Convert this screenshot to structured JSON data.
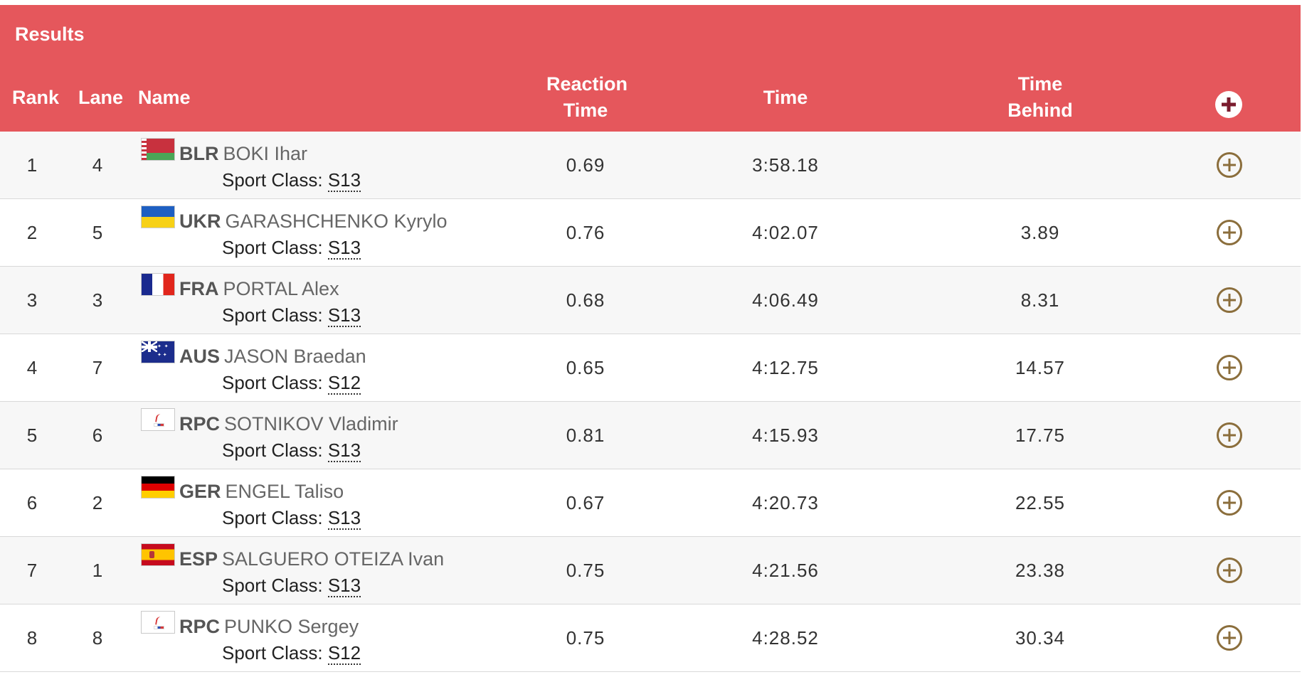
{
  "section_title": "Results",
  "columns": {
    "rank": "Rank",
    "lane": "Lane",
    "name": "Name",
    "reaction_time": "Reaction Time",
    "time": "Time",
    "time_behind": "Time Behind"
  },
  "sport_class_label": "Sport Class:",
  "colors": {
    "header_bg": "#e5575c",
    "header_text": "#ffffff",
    "expand_icon": "#8b6e3c",
    "header_expand_icon": "#7a1c2e"
  },
  "rows": [
    {
      "rank": "1",
      "lane": "4",
      "noc": "BLR",
      "flag_icon": "flag-blr-icon",
      "name": "BOKI Ihar",
      "sport_class": "S13",
      "reaction_time": "0.69",
      "time": "3:58.18",
      "time_behind": ""
    },
    {
      "rank": "2",
      "lane": "5",
      "noc": "UKR",
      "flag_icon": "flag-ukr-icon",
      "name": "GARASHCHENKO Kyrylo",
      "sport_class": "S13",
      "reaction_time": "0.76",
      "time": "4:02.07",
      "time_behind": "3.89"
    },
    {
      "rank": "3",
      "lane": "3",
      "noc": "FRA",
      "flag_icon": "flag-fra-icon",
      "name": "PORTAL Alex",
      "sport_class": "S13",
      "reaction_time": "0.68",
      "time": "4:06.49",
      "time_behind": "8.31"
    },
    {
      "rank": "4",
      "lane": "7",
      "noc": "AUS",
      "flag_icon": "flag-aus-icon",
      "name": "JASON Braedan",
      "sport_class": "S12",
      "reaction_time": "0.65",
      "time": "4:12.75",
      "time_behind": "14.57"
    },
    {
      "rank": "5",
      "lane": "6",
      "noc": "RPC",
      "flag_icon": "flag-rpc-icon",
      "name": "SOTNIKOV Vladimir",
      "sport_class": "S13",
      "reaction_time": "0.81",
      "time": "4:15.93",
      "time_behind": "17.75"
    },
    {
      "rank": "6",
      "lane": "2",
      "noc": "GER",
      "flag_icon": "flag-ger-icon",
      "name": "ENGEL Taliso",
      "sport_class": "S13",
      "reaction_time": "0.67",
      "time": "4:20.73",
      "time_behind": "22.55"
    },
    {
      "rank": "7",
      "lane": "1",
      "noc": "ESP",
      "flag_icon": "flag-esp-icon",
      "name": "SALGUERO OTEIZA Ivan",
      "sport_class": "S13",
      "reaction_time": "0.75",
      "time": "4:21.56",
      "time_behind": "23.38"
    },
    {
      "rank": "8",
      "lane": "8",
      "noc": "RPC",
      "flag_icon": "flag-rpc-icon",
      "name": "PUNKO Sergey",
      "sport_class": "S12",
      "reaction_time": "0.75",
      "time": "4:28.52",
      "time_behind": "30.34"
    }
  ]
}
